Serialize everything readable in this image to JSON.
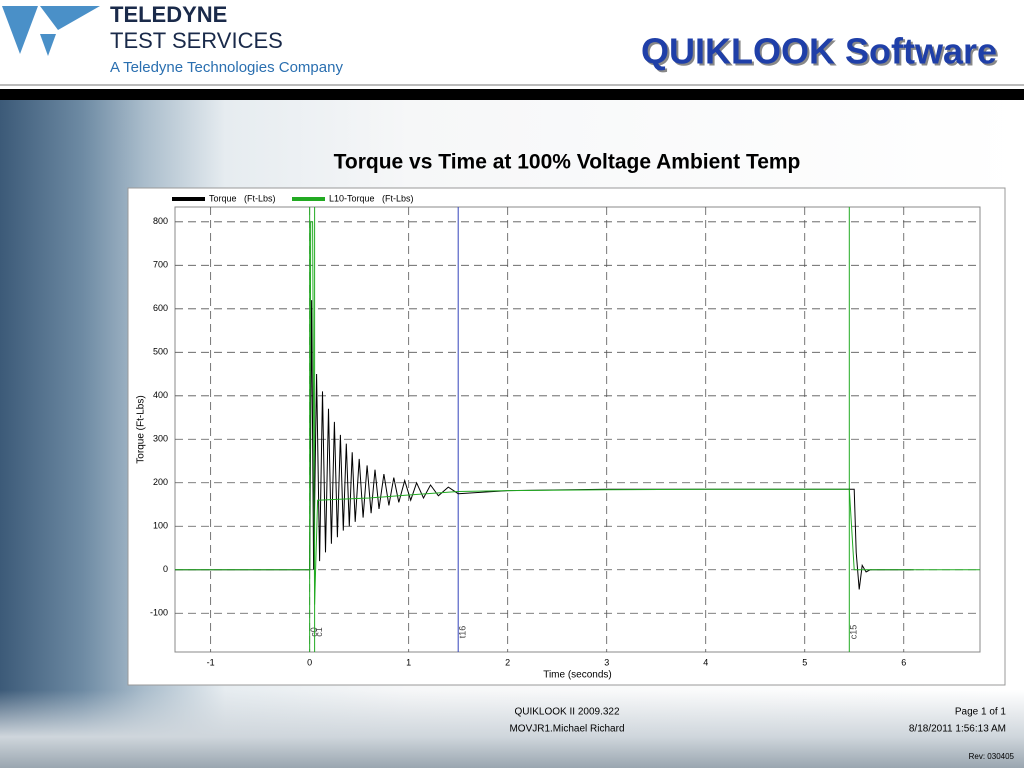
{
  "header": {
    "logo_line1": "TELEDYNE",
    "logo_line2": "TEST SERVICES",
    "logo_line3": "A Teledyne Technologies Company",
    "slide_title": "QUIKLOOK Software"
  },
  "chart_data": {
    "type": "line",
    "title": "Torque vs Time at 100% Voltage Ambient Temp",
    "x_label": "Time  (seconds)",
    "y_label": "Torque  (Ft-Lbs)",
    "xlim": [
      -1.36,
      6.77
    ],
    "ylim": [
      -189,
      834
    ],
    "xticks": [
      -1,
      0,
      1,
      2,
      3,
      4,
      5,
      6
    ],
    "yticks": [
      -100,
      0,
      100,
      200,
      300,
      400,
      500,
      600,
      700,
      800
    ],
    "grid": true,
    "series": [
      {
        "name": "Torque   (Ft-Lbs)",
        "color": "#000000",
        "x": [
          -1.36,
          0,
          0.02,
          0.04,
          0.07,
          0.1,
          0.13,
          0.16,
          0.19,
          0.22,
          0.25,
          0.28,
          0.31,
          0.34,
          0.37,
          0.4,
          0.43,
          0.46,
          0.5,
          0.54,
          0.58,
          0.62,
          0.66,
          0.7,
          0.75,
          0.8,
          0.85,
          0.9,
          0.96,
          1.02,
          1.08,
          1.15,
          1.22,
          1.3,
          1.4,
          1.5,
          2,
          3,
          4,
          5,
          5.5,
          5.52,
          5.55,
          5.58,
          5.62,
          5.66,
          6.1
        ],
        "values": [
          0,
          0,
          620,
          0,
          450,
          20,
          410,
          40,
          370,
          60,
          340,
          75,
          310,
          90,
          290,
          100,
          270,
          110,
          255,
          120,
          240,
          130,
          230,
          140,
          220,
          148,
          212,
          155,
          205,
          160,
          200,
          165,
          195,
          170,
          190,
          175,
          182,
          185,
          185,
          185,
          185,
          40,
          -45,
          10,
          -5,
          0,
          0
        ]
      },
      {
        "name": "L10-Torque   (Ft-Lbs)",
        "color": "#22aa22",
        "x": [
          -1.36,
          0,
          0.01,
          0.03,
          0.05,
          0.08,
          0.3,
          0.6,
          1,
          1.5,
          2,
          3,
          4,
          5,
          5.45,
          5.5,
          6.77
        ],
        "values": [
          0,
          0,
          800,
          800,
          -80,
          160,
          162,
          165,
          172,
          180,
          182,
          184,
          185,
          185,
          185,
          0,
          0
        ]
      }
    ],
    "annotations": [
      {
        "text": "c0",
        "x": 0,
        "color": "#22aa22"
      },
      {
        "text": "c1",
        "x": 0.05,
        "color": "#22aa22"
      },
      {
        "text": "t16",
        "x": 1.5,
        "color": "#3344bb"
      },
      {
        "text": "c15",
        "x": 5.45,
        "color": "#22aa22"
      }
    ]
  },
  "footer": {
    "software": "QUIKLOOK II 2009.322",
    "file": "MOVJR1.Michael Richard",
    "page": "Page 1 of 1",
    "date": "8/18/2011 1:56:13 AM",
    "rev": "Rev: 030405"
  }
}
